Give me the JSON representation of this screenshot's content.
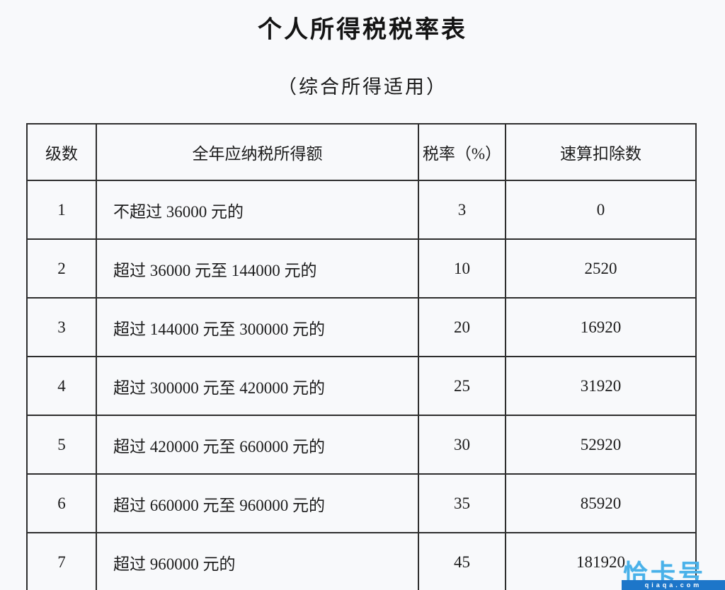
{
  "page": {
    "title": "个人所得税税率表",
    "subtitle": "（综合所得适用）",
    "background_color": "#f8f9fb",
    "border_color": "#2e2e2e",
    "text_color": "#1c1c1c"
  },
  "table": {
    "headers": [
      "级数",
      "全年应纳税所得额",
      "税率（%）",
      "速算扣除数"
    ],
    "rows": [
      [
        "1",
        "不超过 36000 元的",
        "3",
        "0"
      ],
      [
        "2",
        "超过 36000 元至 144000 元的",
        "10",
        "2520"
      ],
      [
        "3",
        "超过 144000 元至 300000 元的",
        "20",
        "16920"
      ],
      [
        "4",
        "超过 300000 元至 420000 元的",
        "25",
        "31920"
      ],
      [
        "5",
        "超过 420000 元至 660000 元的",
        "30",
        "52920"
      ],
      [
        "6",
        "超过 660000 元至 960000 元的",
        "35",
        "85920"
      ],
      [
        "7",
        "超过 960000 元的",
        "45",
        "181920"
      ]
    ]
  },
  "watermark": {
    "logo_text": "恰卡号",
    "domain": "qiaqa.com",
    "logo_color": "#49b1e9",
    "bar_color": "#1d76c9"
  }
}
